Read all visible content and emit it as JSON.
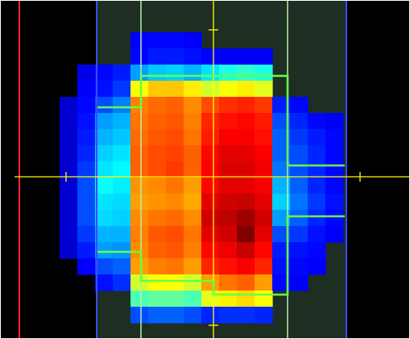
{
  "viewer": {
    "background_color": "#000000",
    "frame_color": "#ffffff",
    "field_region_color": "#1e2e22",
    "field_boundary_color": "#3a4cff",
    "leaf_boundary_color": "#b8f0a8",
    "crosshair_color": "#ffff00",
    "left_marker_color": "#ff2a2a",
    "isodose_outline_color": "#66ff44",
    "colormap": "jet",
    "dose_grid": {
      "rows": [
        [
          0.0,
          0.0,
          0.0,
          0.0,
          0.0,
          0.0,
          0.0,
          0.0,
          0.0,
          0.0,
          0.0,
          0.0,
          0.0,
          0.0,
          0.0,
          0.0,
          0.0,
          0.0,
          0.0,
          0.0
        ],
        [
          0.0,
          0.0,
          0.0,
          0.0,
          0.0,
          0.0,
          0.0,
          0.0,
          0.0,
          0.0,
          0.0,
          0.0,
          0.0,
          0.0,
          0.0,
          0.0,
          0.0,
          0.0,
          0.0,
          0.0
        ],
        [
          0.0,
          0.0,
          0.0,
          0.0,
          0.0,
          0.0,
          0.12,
          0.13,
          0.13,
          0.12,
          0.0,
          0.0,
          0.0,
          0.0,
          0.0,
          0.0,
          0.0,
          0.0,
          0.0,
          0.0
        ],
        [
          0.0,
          0.0,
          0.0,
          0.0,
          0.0,
          0.0,
          0.13,
          0.15,
          0.15,
          0.14,
          0.12,
          0.12,
          0.12,
          0.12,
          0.0,
          0.0,
          0.0,
          0.0,
          0.0,
          0.0
        ],
        [
          0.0,
          0.0,
          0.0,
          0.1,
          0.13,
          0.15,
          0.28,
          0.32,
          0.33,
          0.3,
          0.35,
          0.4,
          0.42,
          0.4,
          0.0,
          0.0,
          0.0,
          0.0,
          0.0,
          0.0
        ],
        [
          0.0,
          0.0,
          0.0,
          0.12,
          0.14,
          0.18,
          0.62,
          0.68,
          0.68,
          0.64,
          0.58,
          0.62,
          0.64,
          0.6,
          0.0,
          0.0,
          0.0,
          0.0,
          0.0,
          0.0
        ],
        [
          0.0,
          0.0,
          0.08,
          0.13,
          0.2,
          0.25,
          0.75,
          0.77,
          0.78,
          0.74,
          0.8,
          0.83,
          0.84,
          0.82,
          0.15,
          0.13,
          0.0,
          0.0,
          0.0,
          0.0
        ],
        [
          0.0,
          0.0,
          0.08,
          0.14,
          0.28,
          0.3,
          0.76,
          0.78,
          0.79,
          0.75,
          0.84,
          0.86,
          0.87,
          0.85,
          0.2,
          0.16,
          0.13,
          0.12,
          0.0,
          0.0
        ],
        [
          0.0,
          0.0,
          0.08,
          0.15,
          0.3,
          0.32,
          0.77,
          0.79,
          0.8,
          0.76,
          0.85,
          0.88,
          0.88,
          0.86,
          0.22,
          0.18,
          0.15,
          0.13,
          0.0,
          0.0
        ],
        [
          0.0,
          0.0,
          0.08,
          0.16,
          0.33,
          0.35,
          0.78,
          0.8,
          0.81,
          0.78,
          0.87,
          0.9,
          0.9,
          0.88,
          0.22,
          0.2,
          0.16,
          0.13,
          0.0,
          0.0
        ],
        [
          0.0,
          0.0,
          0.08,
          0.18,
          0.35,
          0.37,
          0.78,
          0.8,
          0.82,
          0.78,
          0.88,
          0.91,
          0.91,
          0.89,
          0.24,
          0.2,
          0.16,
          0.13,
          0.0,
          0.0
        ],
        [
          0.0,
          0.0,
          0.08,
          0.2,
          0.38,
          0.36,
          0.73,
          0.74,
          0.76,
          0.72,
          0.87,
          0.9,
          0.9,
          0.88,
          0.3,
          0.22,
          0.16,
          0.13,
          0.0,
          0.0
        ],
        [
          0.0,
          0.0,
          0.08,
          0.2,
          0.35,
          0.34,
          0.72,
          0.73,
          0.74,
          0.71,
          0.9,
          0.92,
          0.93,
          0.9,
          0.33,
          0.24,
          0.18,
          0.14,
          0.0,
          0.0
        ],
        [
          0.0,
          0.0,
          0.08,
          0.2,
          0.34,
          0.33,
          0.74,
          0.76,
          0.77,
          0.74,
          0.92,
          0.94,
          0.97,
          0.92,
          0.28,
          0.22,
          0.16,
          0.13,
          0.0,
          0.0
        ],
        [
          0.0,
          0.0,
          0.08,
          0.18,
          0.3,
          0.3,
          0.75,
          0.79,
          0.8,
          0.76,
          0.9,
          0.92,
          1.0,
          0.9,
          0.2,
          0.18,
          0.14,
          0.12,
          0.0,
          0.0
        ],
        [
          0.0,
          0.0,
          0.08,
          0.15,
          0.28,
          0.27,
          0.74,
          0.78,
          0.79,
          0.75,
          0.87,
          0.89,
          0.93,
          0.87,
          0.15,
          0.14,
          0.13,
          0.0,
          0.0,
          0.0
        ],
        [
          0.0,
          0.0,
          0.0,
          0.12,
          0.2,
          0.22,
          0.72,
          0.75,
          0.76,
          0.72,
          0.84,
          0.86,
          0.88,
          0.84,
          0.14,
          0.13,
          0.12,
          0.0,
          0.0,
          0.0
        ],
        [
          0.0,
          0.0,
          0.0,
          0.0,
          0.14,
          0.17,
          0.58,
          0.62,
          0.62,
          0.58,
          0.72,
          0.76,
          0.78,
          0.72,
          0.13,
          0.12,
          0.0,
          0.0,
          0.0,
          0.0
        ],
        [
          0.0,
          0.0,
          0.0,
          0.0,
          0.0,
          0.0,
          0.45,
          0.47,
          0.47,
          0.45,
          0.6,
          0.64,
          0.66,
          0.62,
          0.0,
          0.0,
          0.0,
          0.0,
          0.0,
          0.0
        ],
        [
          0.0,
          0.0,
          0.0,
          0.0,
          0.0,
          0.0,
          0.2,
          0.22,
          0.22,
          0.2,
          0.16,
          0.17,
          0.17,
          0.16,
          0.0,
          0.0,
          0.0,
          0.0,
          0.0,
          0.0
        ],
        [
          0.0,
          0.0,
          0.0,
          0.0,
          0.0,
          0.0,
          0.0,
          0.0,
          0.0,
          0.0,
          0.0,
          0.0,
          0.0,
          0.0,
          0.0,
          0.0,
          0.0,
          0.0,
          0.0,
          0.0
        ]
      ]
    }
  }
}
